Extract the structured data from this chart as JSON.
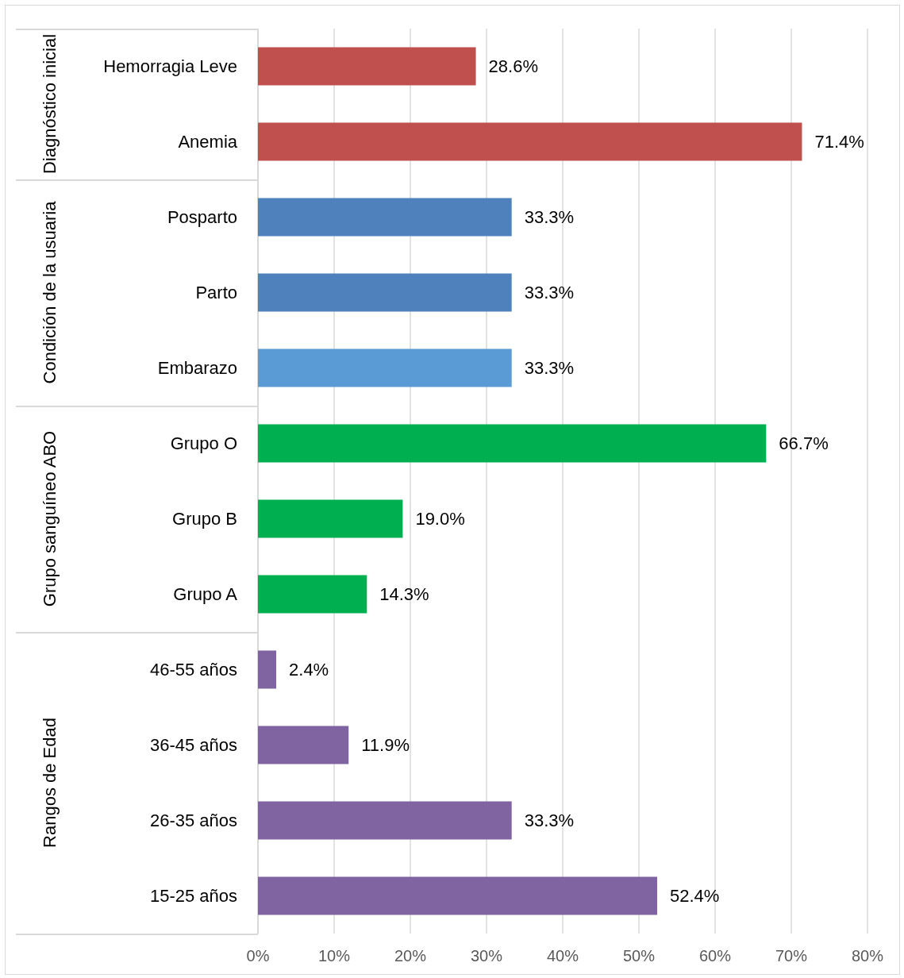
{
  "chart_data": [
    {
      "type": "bar",
      "orientation": "horizontal",
      "ylabel": "Diagnóstico inicial",
      "categories": [
        "Hemorragia Leve",
        "Anemia"
      ],
      "values": [
        28.6,
        71.4
      ],
      "value_labels": [
        "28.6%",
        "71.4%"
      ],
      "colors": [
        "#c0504d",
        "#c0504d"
      ],
      "xlim": [
        0,
        80
      ],
      "xticks": [
        0,
        10,
        20,
        30,
        40,
        50,
        60,
        70,
        80
      ],
      "grid": "x",
      "tick_labels": "y"
    },
    {
      "type": "bar",
      "orientation": "horizontal",
      "ylabel": "Condición de la usuaria",
      "categories": [
        "Posparto",
        "Parto",
        "Embarazo"
      ],
      "values": [
        33.3,
        33.3,
        33.3
      ],
      "value_labels": [
        "33.3%",
        "33.3%",
        "33.3%"
      ],
      "colors": [
        "#4f81bd",
        "#4f81bd",
        "#5b9bd5"
      ],
      "xlim": [
        0,
        80
      ],
      "xticks": [
        0,
        10,
        20,
        30,
        40,
        50,
        60,
        70,
        80
      ],
      "grid": "x",
      "tick_labels": "y"
    },
    {
      "type": "bar",
      "orientation": "horizontal",
      "ylabel": "Grupo sanguíneo ABO",
      "categories": [
        "Grupo O",
        "Grupo B",
        "Grupo A"
      ],
      "values": [
        66.7,
        19.0,
        14.3
      ],
      "value_labels": [
        "66.7%",
        "19.0%",
        "14.3%"
      ],
      "colors": [
        "#00b050",
        "#00b050",
        "#00b050"
      ],
      "xlim": [
        0,
        80
      ],
      "xticks": [
        0,
        10,
        20,
        30,
        40,
        50,
        60,
        70,
        80
      ],
      "grid": "x",
      "tick_labels": "y"
    },
    {
      "type": "bar",
      "orientation": "horizontal",
      "ylabel": "Rangos de Edad",
      "categories": [
        "46-55 años",
        "36-45 años",
        "26-35 años",
        "15-25 años"
      ],
      "values": [
        2.4,
        11.9,
        33.3,
        52.4
      ],
      "value_labels": [
        "2.4%",
        "11.9%",
        "33.3%",
        "52.4%"
      ],
      "colors": [
        "#8064a2",
        "#8064a2",
        "#8064a2",
        "#8064a2"
      ],
      "xlim": [
        0,
        80
      ],
      "xticks": [
        {
          "value": 0,
          "label": "0%"
        },
        {
          "value": 10,
          "label": "10%"
        },
        {
          "value": 20,
          "label": "20%"
        },
        {
          "value": 30,
          "label": "30%"
        },
        {
          "value": 40,
          "label": "40%"
        },
        {
          "value": 50,
          "label": "50%"
        },
        {
          "value": 60,
          "label": "60%"
        },
        {
          "value": 70,
          "label": "70%"
        },
        {
          "value": 80,
          "label": "80%"
        }
      ],
      "grid": "x"
    }
  ]
}
